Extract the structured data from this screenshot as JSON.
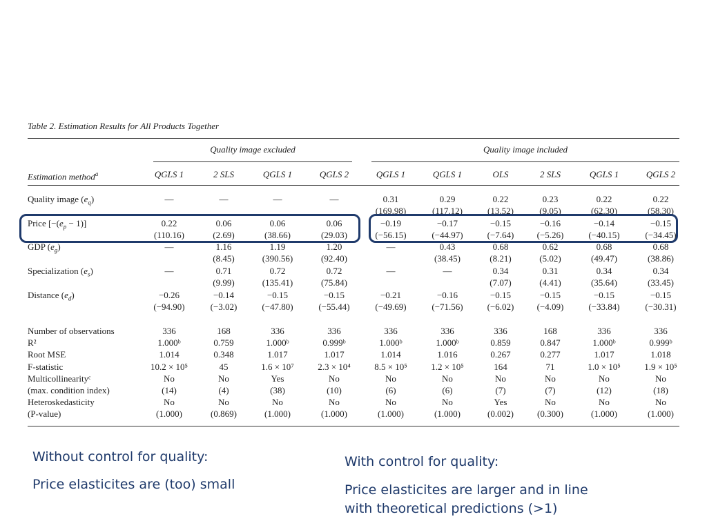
{
  "caption": "Table 2.  Estimation Results for All Products Together",
  "groups": {
    "excluded": "Quality image excluded",
    "included": "Quality image included"
  },
  "header_label": "Estimation method",
  "header_label_sup": "a",
  "methods": [
    "QGLS 1",
    "2 SLS",
    "QGLS 1",
    "QGLS 2",
    "QGLS 1",
    "QGLS 1",
    "OLS",
    "2 SLS",
    "QGLS 1",
    "QGLS 2"
  ],
  "coef_rows": [
    {
      "label_pre": "Quality image (",
      "label_var": "e",
      "label_sub": "q",
      "label_post": ")",
      "top": [
        "—",
        "—",
        "—",
        "—",
        "0.31",
        "0.29",
        "0.22",
        "0.23",
        "0.22",
        "0.22"
      ],
      "bottom": [
        "",
        "",
        "",
        "",
        "(169.98)",
        "(117.12)",
        "(13.52)",
        "(9.05)",
        "(62.30)",
        "(58.30)"
      ]
    },
    {
      "label_pre": "Price [−(",
      "label_var": "e",
      "label_sub": "p",
      "label_post": " − 1)]",
      "top": [
        "0.22",
        "0.06",
        "0.06",
        "0.06",
        "−0.19",
        "−0.17",
        "−0.15",
        "−0.16",
        "−0.14",
        "−0.15"
      ],
      "bottom": [
        "(110.16)",
        "(2.69)",
        "(38.66)",
        "(29.03)",
        "(−56.15)",
        "(−44.97)",
        "(−7.64)",
        "(−5.26)",
        "(−40.15)",
        "(−34.45)"
      ]
    },
    {
      "label_pre": "GDP (",
      "label_var": "e",
      "label_sub": "g",
      "label_post": ")",
      "top": [
        "—",
        "1.16",
        "1.19",
        "1.20",
        "—",
        "0.43",
        "0.68",
        "0.62",
        "0.68",
        "0.68"
      ],
      "bottom": [
        "",
        "(8.45)",
        "(390.56)",
        "(92.40)",
        "",
        "(38.45)",
        "(8.21)",
        "(5.02)",
        "(49.47)",
        "(38.86)"
      ]
    },
    {
      "label_pre": "Specialization (",
      "label_var": "e",
      "label_sub": "s",
      "label_post": ")",
      "top": [
        "—",
        "0.71",
        "0.72",
        "0.72",
        "—",
        "—",
        "0.34",
        "0.31",
        "0.34",
        "0.34"
      ],
      "bottom": [
        "",
        "(9.99)",
        "(135.41)",
        "(75.84)",
        "",
        "",
        "(7.07)",
        "(4.41)",
        "(35.64)",
        "(33.45)"
      ]
    },
    {
      "label_pre": "Distance (",
      "label_var": "e",
      "label_sub": "d",
      "label_post": ")",
      "top": [
        "−0.26",
        "−0.14",
        "−0.15",
        "−0.15",
        "−0.21",
        "−0.16",
        "−0.15",
        "−0.15",
        "−0.15",
        "−0.15"
      ],
      "bottom": [
        "(−94.90)",
        "(−3.02)",
        "(−47.80)",
        "(−55.44)",
        "(−49.69)",
        "(−71.56)",
        "(−6.02)",
        "(−4.09)",
        "(−33.84)",
        "(−30.31)"
      ]
    }
  ],
  "stat_rows": [
    {
      "label": "Number of observations",
      "values": [
        "336",
        "168",
        "336",
        "336",
        "336",
        "336",
        "336",
        "168",
        "336",
        "336"
      ]
    },
    {
      "label": "R²",
      "values": [
        "1.000ᵇ",
        "0.759",
        "1.000ᵇ",
        "0.999ᵇ",
        "1.000ᵇ",
        "1.000ᵇ",
        "0.859",
        "0.847",
        "1.000ᵇ",
        "0.999ᵇ"
      ]
    },
    {
      "label": "Root MSE",
      "values": [
        "1.014",
        "0.348",
        "1.017",
        "1.017",
        "1.014",
        "1.016",
        "0.267",
        "0.277",
        "1.017",
        "1.018"
      ]
    },
    {
      "label": "F-statistic",
      "values": [
        "10.2 × 10⁵",
        "45",
        "1.6 × 10⁷",
        "2.3 × 10⁴",
        "8.5 × 10⁵",
        "1.2 × 10⁵",
        "164",
        "71",
        "1.0 × 10⁵",
        "1.9 × 10⁵"
      ]
    },
    {
      "label": "Multicollinearityᶜ",
      "values": [
        "No",
        "No",
        "Yes",
        "No",
        "No",
        "No",
        "No",
        "No",
        "No",
        "No"
      ]
    },
    {
      "label": "(max. condition index)",
      "values": [
        "(14)",
        "(4)",
        "(38)",
        "(10)",
        "(6)",
        "(6)",
        "(7)",
        "(7)",
        "(12)",
        "(18)"
      ]
    },
    {
      "label": "Heteroskedasticity",
      "values": [
        "No",
        "No",
        "No",
        "No",
        "No",
        "No",
        "Yes",
        "No",
        "No",
        "No"
      ]
    },
    {
      "label": "(P-value)",
      "values": [
        "(1.000)",
        "(0.869)",
        "(1.000)",
        "(1.000)",
        "(1.000)",
        "(1.000)",
        "(0.002)",
        "(0.300)",
        "(1.000)",
        "(1.000)"
      ]
    }
  ],
  "notes": {
    "left_title": "Without control for quality:",
    "left_body": "Price elasticites are (too) small",
    "right_title": "With control for quality:",
    "right_body_1": "Price elasticites are larger and in line",
    "right_body_2": "with theoretical predictions (>1)"
  }
}
